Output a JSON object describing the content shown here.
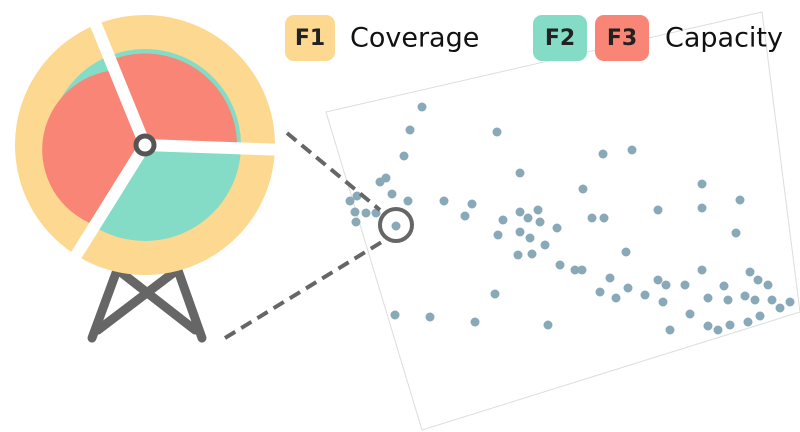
{
  "legend": {
    "f1": {
      "tag": "F1",
      "label": "Coverage"
    },
    "f2": {
      "tag": "F2"
    },
    "f3": {
      "tag": "F3",
      "label": "Capacity"
    }
  }
}
